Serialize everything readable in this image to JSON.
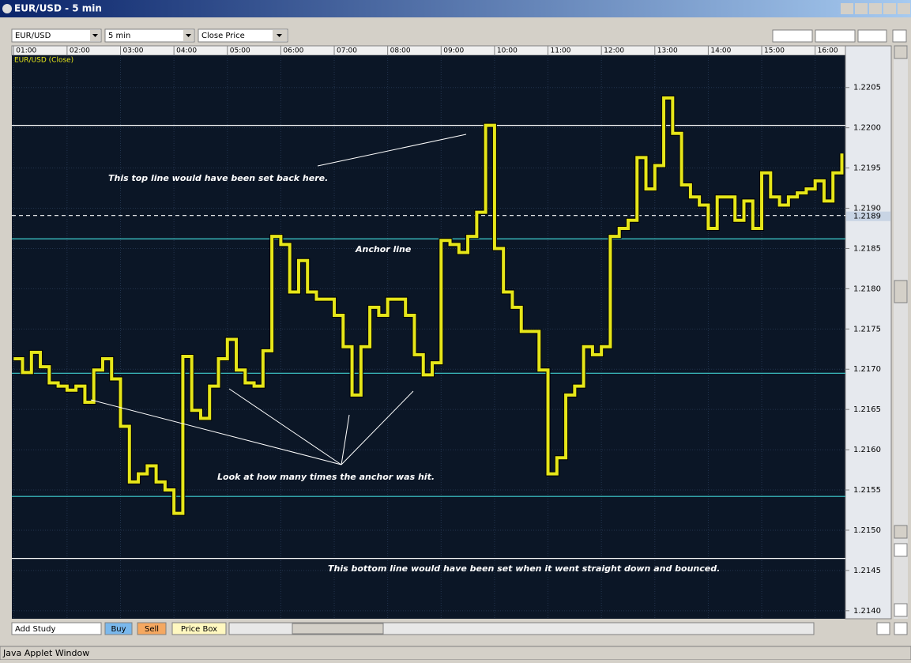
{
  "window": {
    "title": "EUR/USD - 5 min",
    "status": "Java Applet Window"
  },
  "toolbar": {
    "symbol": "EUR/USD",
    "interval": "5 min",
    "price_type": "Close Price"
  },
  "bottom_bar": {
    "add_study": "Add Study",
    "buy": "Buy",
    "sell": "Sell",
    "price_box": "Price Box"
  },
  "chart_data": {
    "type": "line",
    "series_label": "EUR/USD (Close)",
    "series": [
      {
        "name": "EUR/USD (Close)",
        "color": "#e6e619",
        "values": [
          1.21713,
          1.21696,
          1.21721,
          1.21703,
          1.21683,
          1.21679,
          1.21674,
          1.21679,
          1.21659,
          1.21699,
          1.21713,
          1.21688,
          1.21629,
          1.2156,
          1.2157,
          1.2158,
          1.2156,
          1.2155,
          1.21521,
          1.21716,
          1.21649,
          1.21639,
          1.21679,
          1.21713,
          1.21737,
          1.21699,
          1.21683,
          1.21679,
          1.21723,
          1.21865,
          1.21855,
          1.21796,
          1.21835,
          1.21796,
          1.21787,
          1.21787,
          1.21767,
          1.21728,
          1.21668,
          1.21728,
          1.21777,
          1.21767,
          1.21787,
          1.21787,
          1.21767,
          1.21718,
          1.21693,
          1.21708,
          1.2186,
          1.21855,
          1.21845,
          1.21865,
          1.21895,
          1.22003,
          1.2185,
          1.21796,
          1.21777,
          1.21747,
          1.21747,
          1.21699,
          1.2157,
          1.2159,
          1.21668,
          1.21679,
          1.21728,
          1.21718,
          1.21728,
          1.21865,
          1.21875,
          1.21885,
          1.21963,
          1.21924,
          1.21953,
          1.22037,
          1.21993,
          1.21929,
          1.21914,
          1.21904,
          1.21875,
          1.21914,
          1.21914,
          1.21885,
          1.21909,
          1.21875,
          1.21944,
          1.21914,
          1.21904,
          1.21914,
          1.21919,
          1.21924,
          1.21934,
          1.21909,
          1.21944,
          1.21968
        ]
      }
    ],
    "x": [
      "01:00",
      "01:10",
      "01:20",
      "01:30",
      "01:40",
      "01:50",
      "02:00",
      "02:10",
      "02:20",
      "02:30",
      "02:40",
      "02:50",
      "03:00",
      "03:10",
      "03:20",
      "03:30",
      "03:40",
      "03:50",
      "04:00",
      "04:10",
      "04:20",
      "04:30",
      "04:40",
      "04:50",
      "05:00",
      "05:10",
      "05:20",
      "05:30",
      "05:40",
      "05:50",
      "06:00",
      "06:10",
      "06:20",
      "06:30",
      "06:40",
      "06:50",
      "07:00",
      "07:10",
      "07:20",
      "07:30",
      "07:40",
      "07:50",
      "08:00",
      "08:10",
      "08:20",
      "08:30",
      "08:40",
      "08:50",
      "09:00",
      "09:10",
      "09:20",
      "09:30",
      "09:40",
      "09:50",
      "10:00",
      "10:10",
      "10:20",
      "10:30",
      "10:40",
      "10:50",
      "11:00",
      "11:10",
      "11:20",
      "11:30",
      "11:40",
      "11:50",
      "12:00",
      "12:10",
      "12:20",
      "12:30",
      "12:40",
      "12:50",
      "13:00",
      "13:10",
      "13:20",
      "13:30",
      "13:40",
      "13:50",
      "14:00",
      "14:10",
      "14:20",
      "14:30",
      "14:40",
      "14:50",
      "15:00",
      "15:10",
      "15:20",
      "15:30",
      "15:40",
      "15:50",
      "16:00",
      "16:10",
      "16:20",
      "16:30"
    ],
    "xlim": [
      "00:58",
      "16:34"
    ],
    "xticks": [
      "01:00",
      "02:00",
      "03:00",
      "04:00",
      "05:00",
      "06:00",
      "07:00",
      "08:00",
      "09:00",
      "10:00",
      "11:00",
      "12:00",
      "13:00",
      "14:00",
      "15:00",
      "16:00"
    ],
    "ylim": [
      1.2139,
      1.2209
    ],
    "yticks": [
      {
        "value": 1.214,
        "label": "1.2140"
      },
      1.2145,
      {
        "value": 1.215,
        "label": "1.2150"
      },
      1.2155,
      {
        "value": 1.216,
        "label": "1.2160"
      },
      1.2165,
      {
        "value": 1.217,
        "label": "1.2170"
      },
      1.2175,
      {
        "value": 1.218,
        "label": "1.2180"
      },
      1.2185,
      {
        "value": 1.219,
        "label": "1.2190"
      },
      1.2195,
      {
        "value": 1.22,
        "label": "1.2200"
      },
      1.2205
    ],
    "grid": true,
    "current_price": 1.2189,
    "levels": [
      {
        "value": 1.22003,
        "color": "#ffffff",
        "style": "solid"
      },
      {
        "value": 1.21891,
        "color": "#ffffff",
        "style": "dashed"
      },
      {
        "value": 1.21862,
        "color": "#40d0d0",
        "style": "solid"
      },
      {
        "value": 1.21695,
        "color": "#40d0d0",
        "style": "solid"
      },
      {
        "value": 1.21542,
        "color": "#40d0d0",
        "style": "solid"
      },
      {
        "value": 1.21465,
        "color": "#ffffff",
        "style": "solid"
      }
    ],
    "annotations": [
      "This top line would have been set back here.",
      "Anchor line",
      "Look at how many times the anchor was hit.",
      "This bottom line would have been set when it went straight down and bounced."
    ]
  }
}
